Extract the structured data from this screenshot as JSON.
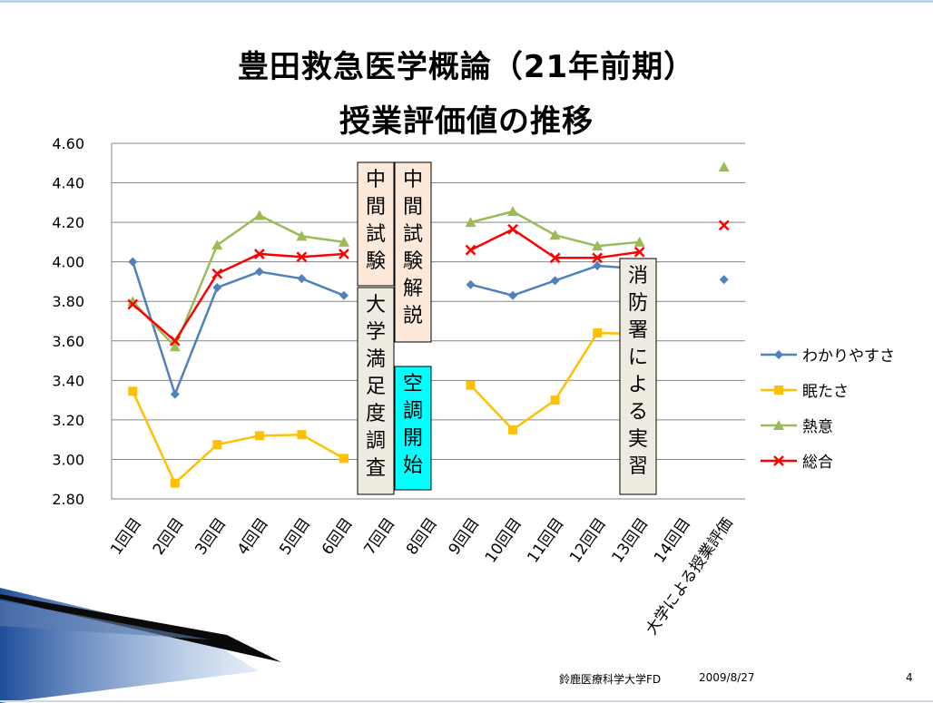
{
  "slide": {
    "title_line1": "豊田救急医学概論（21年前期）",
    "title_line2": "授業評価値の推移",
    "footer_org": "鈴鹿医療科学大学FD",
    "footer_date": "2009/8/27",
    "page_number": "4"
  },
  "chart_data": {
    "type": "line",
    "categories": [
      "1回目",
      "2回目",
      "3回目",
      "4回目",
      "5回目",
      "6回目",
      "7回目",
      "8回目",
      "9回目",
      "10回目",
      "11回目",
      "12回目",
      "13回目",
      "14回目",
      "大学による授業評価"
    ],
    "ylim": [
      2.8,
      4.6
    ],
    "yticks": [
      "4.60",
      "4.40",
      "4.20",
      "4.00",
      "3.80",
      "3.60",
      "3.40",
      "3.20",
      "3.00",
      "2.80"
    ],
    "grid": true,
    "legend_position": "right",
    "series": [
      {
        "name": "わかりやすさ",
        "color": "#4f81bd",
        "marker": "diamond",
        "values": [
          4.0,
          3.33,
          3.87,
          3.95,
          3.915,
          3.83,
          null,
          null,
          3.885,
          3.83,
          3.905,
          3.98,
          3.965,
          null,
          3.91
        ]
      },
      {
        "name": "眠たさ",
        "color": "#ffc000",
        "marker": "square",
        "values": [
          3.345,
          2.88,
          3.075,
          3.12,
          3.125,
          3.005,
          null,
          null,
          3.375,
          3.15,
          3.3,
          3.64,
          3.635,
          null,
          null
        ]
      },
      {
        "name": "熱意",
        "color": "#9bbb59",
        "marker": "triangle",
        "values": [
          3.8,
          3.57,
          4.085,
          4.235,
          4.13,
          4.1,
          null,
          null,
          4.2,
          4.255,
          4.135,
          4.08,
          4.1,
          null,
          4.48
        ]
      },
      {
        "name": "総合",
        "color": "#ff0000",
        "marker": "x",
        "values": [
          3.785,
          3.6,
          3.94,
          4.04,
          4.025,
          4.04,
          null,
          null,
          4.06,
          4.165,
          4.02,
          4.02,
          4.05,
          null,
          4.185
        ]
      }
    ],
    "annotations": [
      {
        "text": "中間試験",
        "bg": "#fde9d9"
      },
      {
        "text": "大学満足度調査",
        "bg": "#eeece1"
      },
      {
        "text": "中間試験解説",
        "bg": "#fde9d9"
      },
      {
        "text": "空調開始",
        "bg": "#00ffff"
      },
      {
        "text": "消防署による実習",
        "bg": "#eeece1"
      }
    ]
  }
}
